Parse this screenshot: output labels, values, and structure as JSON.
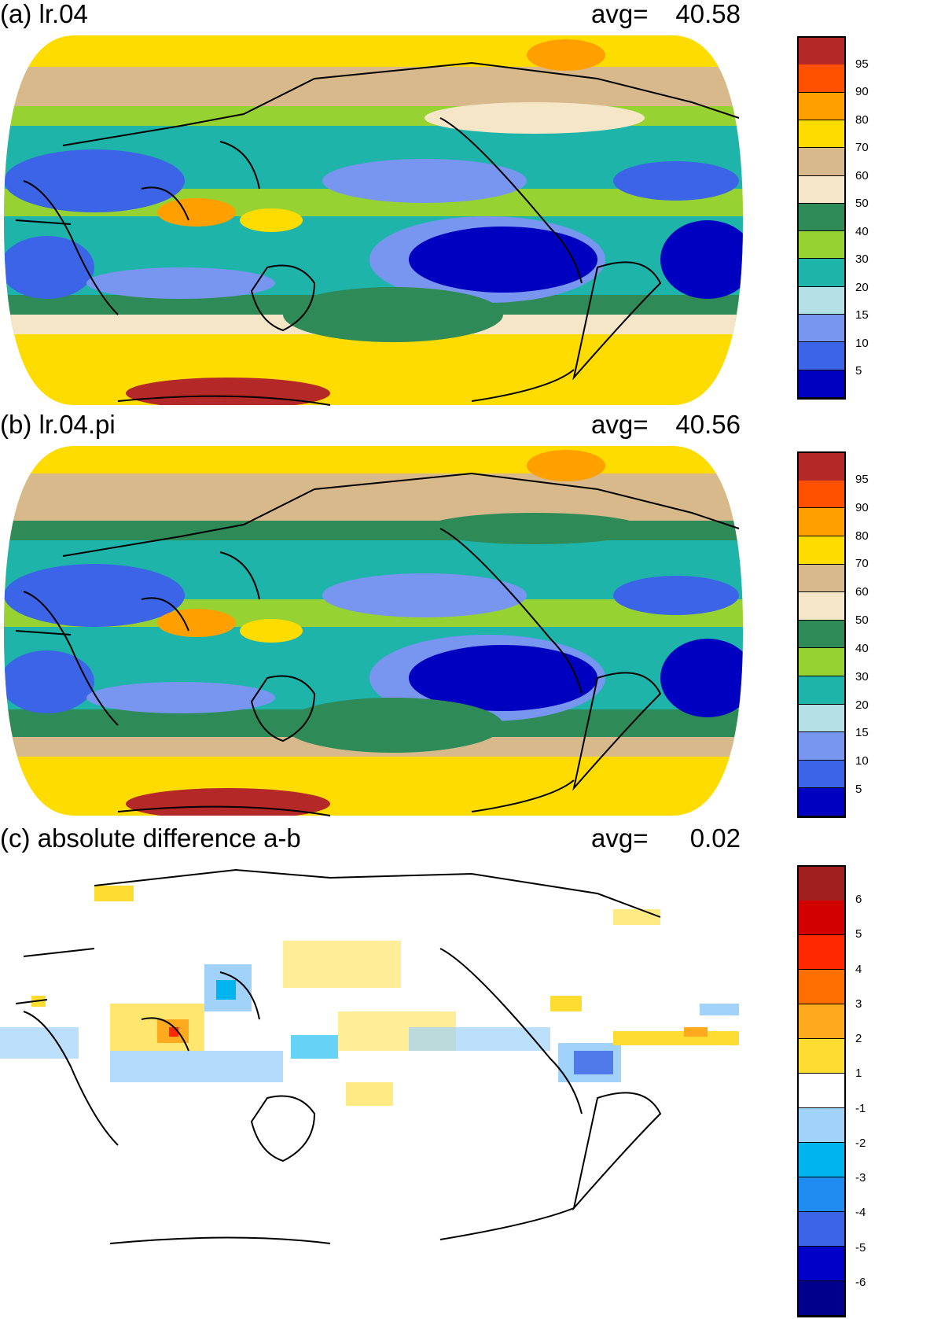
{
  "panels": [
    {
      "id": "a",
      "title": "(a) lr.04",
      "avg_label": "avg=",
      "avg_value": "40.58",
      "colorbar": {
        "colors": [
          "#0000c0",
          "#3c64e6",
          "#7896f0",
          "#b4e0e6",
          "#1eb4aa",
          "#96d232",
          "#2e8b57",
          "#f5e6c8",
          "#d7b98c",
          "#ffdc00",
          "#ffa000",
          "#ff5000",
          "#b42828"
        ],
        "labels": [
          "5",
          "10",
          "15",
          "20",
          "30",
          "40",
          "50",
          "60",
          "70",
          "80",
          "90",
          "95"
        ]
      }
    },
    {
      "id": "b",
      "title": "(b) lr.04.pi",
      "avg_label": "avg=",
      "avg_value": "40.56",
      "colorbar": {
        "colors": [
          "#0000c0",
          "#3c64e6",
          "#7896f0",
          "#b4e0e6",
          "#1eb4aa",
          "#96d232",
          "#2e8b57",
          "#f5e6c8",
          "#d7b98c",
          "#ffdc00",
          "#ffa000",
          "#ff5000",
          "#b42828"
        ],
        "labels": [
          "5",
          "10",
          "15",
          "20",
          "30",
          "40",
          "50",
          "60",
          "70",
          "80",
          "90",
          "95"
        ]
      }
    },
    {
      "id": "c",
      "title": "(c) absolute difference a-b",
      "avg_label": "avg=",
      "avg_value": "0.02",
      "colorbar": {
        "colors": [
          "#00008c",
          "#0000c8",
          "#3c64e6",
          "#1e8cf0",
          "#00b4f0",
          "#a0d2fa",
          "#ffffff",
          "#ffdc32",
          "#ffaa1e",
          "#ff6e00",
          "#ff2800",
          "#d20000",
          "#a01e1e"
        ],
        "labels": [
          "-6",
          "-5",
          "-4",
          "-3",
          "-2",
          "-1",
          "1",
          "2",
          "3",
          "4",
          "5",
          "6"
        ]
      }
    }
  ]
}
